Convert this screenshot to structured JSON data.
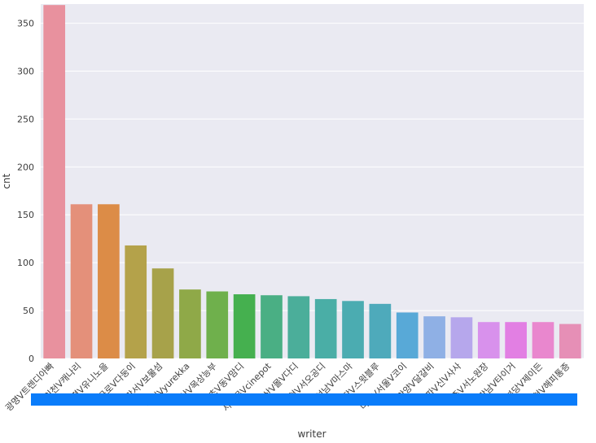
{
  "chart_data": {
    "type": "bar",
    "title": "",
    "xlabel": "writer",
    "ylabel": "cnt",
    "ylim": [
      0,
      370
    ],
    "yticks": [
      0,
      50,
      100,
      150,
      200,
      250,
      300,
      350
    ],
    "grid": true,
    "categories": [
      "광명V트렌디아빠",
      "인천V캐나리",
      "은평V유니노을",
      "구로V다둥이",
      "강서V보물섬",
      "부천Vyurekka",
      "일산V목상능부",
      "서초V동V맘디",
      "서대문Vcinepot",
      "용산V몰V다디",
      "인천V서오공디",
      "성남V마스마",
      "동작V스윗블루",
      "마포V서울V코이",
      "안양V달걀비",
      "송파V신V사사",
      "제주V서노원장",
      "강남V타이거",
      "분당V제이든",
      "인천V해피통증"
    ],
    "values": [
      369,
      161,
      161,
      118,
      94,
      72,
      70,
      67,
      66,
      65,
      62,
      60,
      57,
      48,
      44,
      43,
      38,
      38,
      38,
      36
    ],
    "colors": [
      "#e8919e",
      "#e4907a",
      "#dc8c47",
      "#b4a24a",
      "#a7a24a",
      "#8fa948",
      "#6fb04c",
      "#45b04f",
      "#4aaf84",
      "#4bae9a",
      "#4aaea6",
      "#4bacb1",
      "#4eaabb",
      "#58a9d7",
      "#8fb0e5",
      "#b6a7ec",
      "#d891ec",
      "#e27fe3",
      "#e987ce",
      "#e68fb6"
    ],
    "plot_background": "#eaeaf2",
    "overlay_color": "#0a7cfa"
  }
}
